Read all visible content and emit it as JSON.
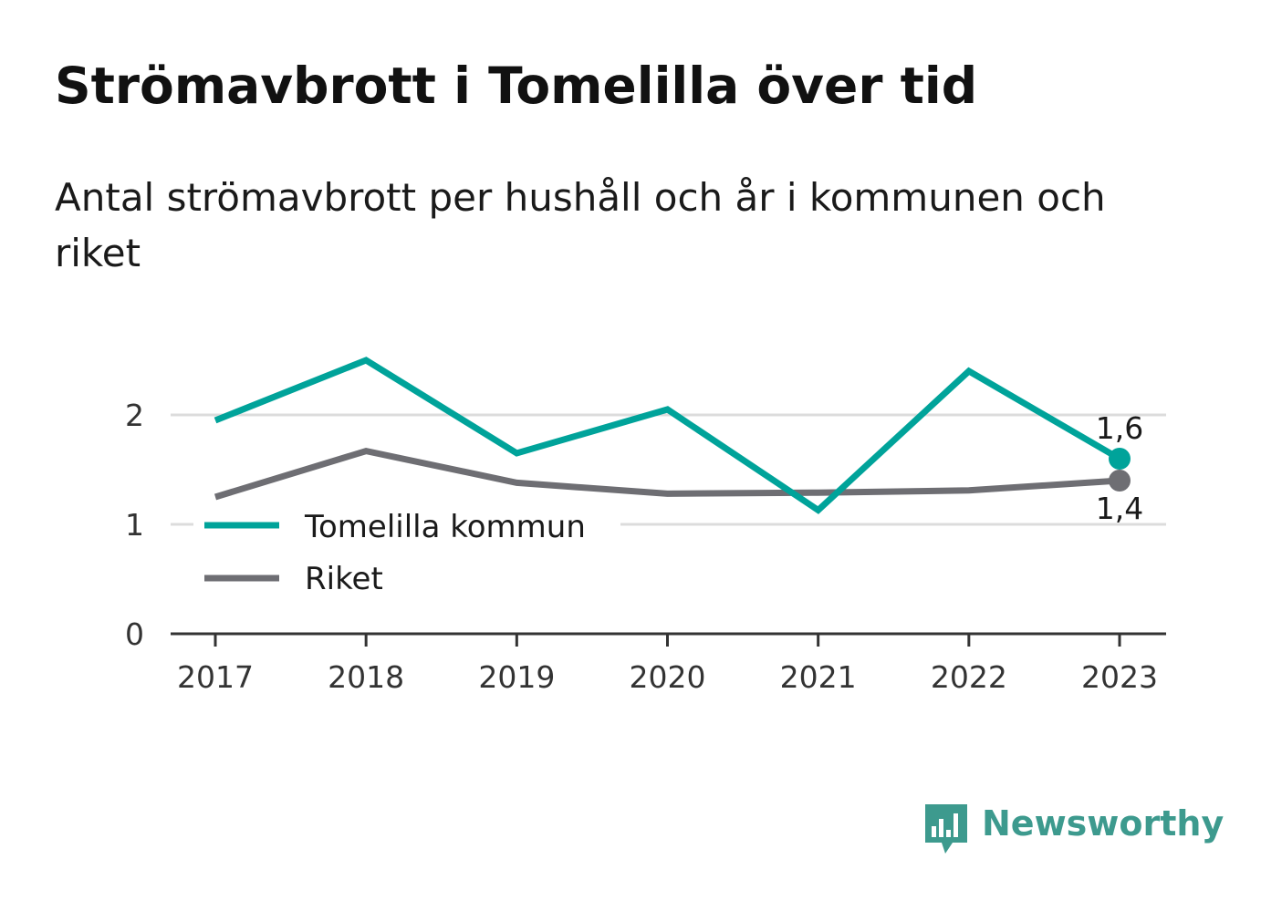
{
  "header": {
    "title": "Strömavbrott i Tomelilla över tid",
    "subtitle": "Antal strömavbrott per hushåll och år i kommunen och riket"
  },
  "chart_data": {
    "type": "line",
    "x": [
      "2017",
      "2018",
      "2019",
      "2020",
      "2021",
      "2022",
      "2023"
    ],
    "series": [
      {
        "name": "Tomelilla kommun",
        "color": "#00a39a",
        "values": [
          1.95,
          2.5,
          1.65,
          2.05,
          1.13,
          2.4,
          1.6
        ],
        "end_label": "1,6"
      },
      {
        "name": "Riket",
        "color": "#6e6e73",
        "values": [
          1.25,
          1.67,
          1.38,
          1.28,
          1.29,
          1.31,
          1.4
        ],
        "end_label": "1,4"
      }
    ],
    "y_ticks": [
      "0",
      "1",
      "2"
    ],
    "ylim": [
      0,
      2.5
    ],
    "grid": true,
    "legend": "bottom-left"
  },
  "branding": {
    "name": "Newsworthy",
    "icon": "bar-chart-speech-bubble-icon",
    "color": "#3d9a8e"
  }
}
